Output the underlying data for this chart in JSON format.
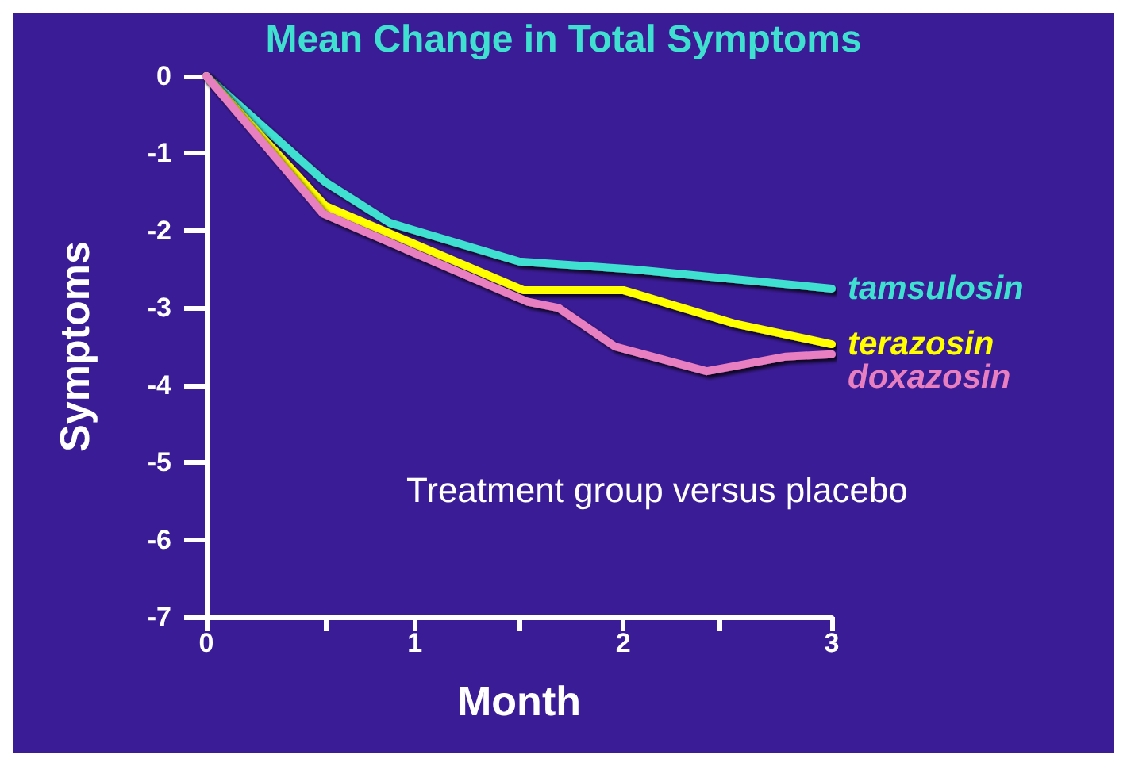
{
  "chart_data": {
    "type": "line",
    "title": "Mean Change in Total Symptoms",
    "xlabel": "Month",
    "ylabel": "Symptoms",
    "annotations": [
      "Treatment group versus placebo"
    ],
    "xlim": [
      0,
      3
    ],
    "xticks": [
      0,
      {
        "value": 0.57,
        "label": null
      },
      1,
      {
        "value": 1.5,
        "label": null
      },
      2,
      {
        "value": 2.46,
        "label": null
      },
      3
    ],
    "ylim": [
      -7,
      0
    ],
    "yticks": [
      0,
      -1,
      -2,
      -3,
      -4,
      -5,
      -6,
      -7
    ],
    "grid": false,
    "legend": false,
    "marker": "none",
    "line_style": "solid",
    "series": [
      {
        "name": "tamsulosin",
        "color": "#40e0d0",
        "x": [
          0,
          0.57,
          0.88,
          1.5,
          2.04,
          3
        ],
        "values": [
          0,
          -1.37,
          -1.9,
          -2.4,
          -2.5,
          -2.75
        ]
      },
      {
        "name": "terazosin",
        "color": "#ffff00",
        "x": [
          0,
          0.57,
          1.52,
          2.0,
          2.53,
          3
        ],
        "values": [
          0,
          -1.68,
          -2.77,
          -2.77,
          -3.2,
          -3.47
        ]
      },
      {
        "name": "doxazosin",
        "color": "#e87fc0",
        "x": [
          0,
          0.56,
          1.54,
          1.69,
          1.96,
          2.4,
          2.78,
          3
        ],
        "values": [
          0,
          -1.78,
          -2.92,
          -3.0,
          -3.5,
          -3.82,
          -3.63,
          -3.6
        ]
      }
    ]
  }
}
